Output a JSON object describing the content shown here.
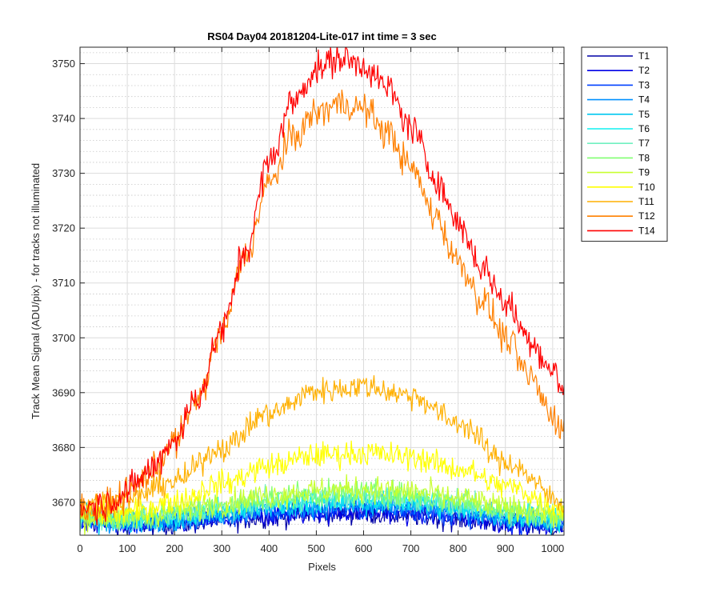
{
  "chart_data": {
    "type": "line",
    "title": "RS04 Day04 20181204-Lite-017 int time = 3 sec",
    "xlabel": "Pixels",
    "ylabel": "Track Mean Signal (ADU/pix) - for tracks not illuminated",
    "xlim": [
      0,
      1024
    ],
    "ylim": [
      3664,
      3753
    ],
    "xticks": [
      0,
      100,
      200,
      300,
      400,
      500,
      600,
      700,
      800,
      900,
      1000
    ],
    "yticks": [
      3670,
      3680,
      3690,
      3700,
      3710,
      3720,
      3730,
      3740,
      3750
    ],
    "grid": true,
    "minor_grid": true,
    "legend_position": "outside-top-right",
    "series": [
      {
        "name": "T1",
        "color": "#0000a6",
        "noise": 1.0,
        "x": [
          0,
          100,
          200,
          300,
          400,
          500,
          600,
          700,
          800,
          900,
          1024
        ],
        "y": [
          3666.5,
          3665.8,
          3666.0,
          3666.6,
          3667.3,
          3667.8,
          3667.9,
          3667.6,
          3666.9,
          3666.1,
          3665.4
        ]
      },
      {
        "name": "T2",
        "color": "#0000e6",
        "noise": 1.0,
        "x": [
          0,
          100,
          200,
          300,
          400,
          500,
          600,
          700,
          800,
          900,
          1024
        ],
        "y": [
          3666.6,
          3665.9,
          3666.2,
          3666.9,
          3667.6,
          3668.1,
          3668.2,
          3667.9,
          3667.2,
          3666.3,
          3665.6
        ]
      },
      {
        "name": "T3",
        "color": "#0040ff",
        "noise": 1.0,
        "x": [
          0,
          100,
          200,
          300,
          400,
          500,
          600,
          700,
          800,
          900,
          1024
        ],
        "y": [
          3666.7,
          3666.1,
          3666.5,
          3667.3,
          3668.1,
          3668.6,
          3668.7,
          3668.4,
          3667.7,
          3666.7,
          3665.9
        ]
      },
      {
        "name": "T4",
        "color": "#0090ff",
        "noise": 1.0,
        "x": [
          0,
          100,
          200,
          300,
          400,
          500,
          600,
          700,
          800,
          900,
          1024
        ],
        "y": [
          3666.8,
          3666.3,
          3666.8,
          3667.7,
          3668.6,
          3669.2,
          3669.3,
          3669.0,
          3668.2,
          3667.1,
          3666.2
        ]
      },
      {
        "name": "T5",
        "color": "#00c8f0",
        "noise": 1.1,
        "x": [
          0,
          100,
          200,
          300,
          400,
          500,
          600,
          700,
          800,
          900,
          1024
        ],
        "y": [
          3666.9,
          3666.5,
          3667.1,
          3668.1,
          3669.1,
          3669.8,
          3669.9,
          3669.6,
          3668.7,
          3667.5,
          3666.5
        ]
      },
      {
        "name": "T6",
        "color": "#10f0f0",
        "noise": 1.1,
        "x": [
          0,
          100,
          200,
          300,
          400,
          500,
          600,
          700,
          800,
          900,
          1024
        ],
        "y": [
          3667.0,
          3666.7,
          3667.4,
          3668.5,
          3669.6,
          3670.3,
          3670.5,
          3670.2,
          3669.2,
          3667.9,
          3666.8
        ]
      },
      {
        "name": "T7",
        "color": "#70f0c0",
        "noise": 1.1,
        "x": [
          0,
          100,
          200,
          300,
          400,
          500,
          600,
          700,
          800,
          900,
          1024
        ],
        "y": [
          3667.1,
          3666.9,
          3667.7,
          3668.9,
          3670.1,
          3670.9,
          3671.1,
          3670.8,
          3669.7,
          3668.3,
          3667.1
        ]
      },
      {
        "name": "T8",
        "color": "#80ff70",
        "noise": 1.2,
        "x": [
          0,
          100,
          200,
          300,
          400,
          500,
          600,
          700,
          800,
          900,
          1024
        ],
        "y": [
          3667.2,
          3667.1,
          3668.0,
          3669.4,
          3670.7,
          3671.5,
          3671.7,
          3671.4,
          3670.2,
          3668.7,
          3667.4
        ]
      },
      {
        "name": "T9",
        "color": "#c8ff30",
        "noise": 1.2,
        "x": [
          0,
          100,
          200,
          300,
          400,
          500,
          600,
          700,
          800,
          900,
          1024
        ],
        "y": [
          3667.3,
          3667.3,
          3668.4,
          3669.9,
          3671.2,
          3672.1,
          3672.4,
          3672.0,
          3670.7,
          3669.1,
          3667.7
        ]
      },
      {
        "name": "T10",
        "color": "#ffff00",
        "noise": 1.2,
        "x": [
          0,
          100,
          200,
          300,
          400,
          500,
          600,
          700,
          800,
          900,
          1024
        ],
        "y": [
          3668.0,
          3668.2,
          3670.2,
          3673.4,
          3676.6,
          3678.6,
          3679.0,
          3678.3,
          3676.1,
          3672.9,
          3669.0
        ]
      },
      {
        "name": "T11",
        "color": "#ffb000",
        "noise": 1.2,
        "x": [
          0,
          100,
          200,
          300,
          400,
          500,
          600,
          700,
          800,
          900,
          1024
        ],
        "y": [
          3669.5,
          3670.5,
          3673.8,
          3680.0,
          3686.2,
          3690.3,
          3691.2,
          3689.5,
          3684.5,
          3677.3,
          3670.0
        ]
      },
      {
        "name": "T12",
        "color": "#ff8000",
        "noise": 1.5,
        "x": [
          0,
          50,
          100,
          150,
          200,
          250,
          300,
          350,
          400,
          450,
          500,
          550,
          600,
          650,
          700,
          750,
          800,
          850,
          900,
          950,
          1000,
          1024
        ],
        "y": [
          3668.8,
          3669.2,
          3671.5,
          3675.4,
          3681.0,
          3689.0,
          3701.0,
          3715.0,
          3728.0,
          3736.5,
          3741.0,
          3742.8,
          3741.8,
          3737.5,
          3731.0,
          3722.5,
          3714.0,
          3707.0,
          3700.0,
          3693.0,
          3686.0,
          3683.0
        ]
      },
      {
        "name": "T14",
        "color": "#ff0000",
        "noise": 1.5,
        "x": [
          0,
          50,
          100,
          150,
          200,
          250,
          300,
          350,
          400,
          450,
          500,
          550,
          600,
          650,
          700,
          750,
          800,
          850,
          900,
          950,
          1000,
          1024
        ],
        "y": [
          3669.0,
          3669.6,
          3672.0,
          3676.0,
          3681.6,
          3689.5,
          3701.5,
          3716.0,
          3732.0,
          3743.0,
          3749.0,
          3751.0,
          3749.8,
          3745.5,
          3738.5,
          3729.5,
          3721.0,
          3713.0,
          3706.5,
          3700.0,
          3694.0,
          3690.5
        ]
      }
    ]
  }
}
